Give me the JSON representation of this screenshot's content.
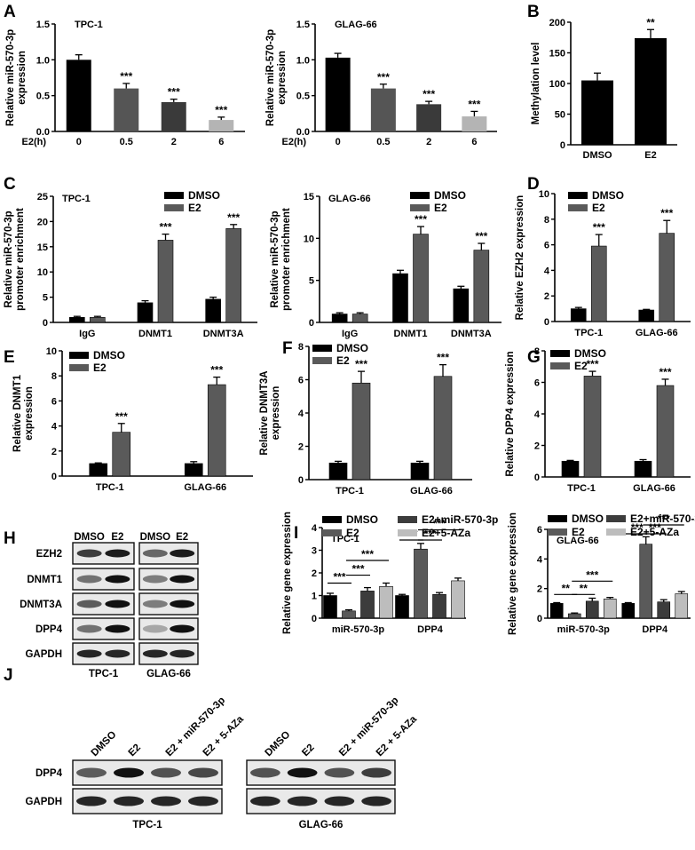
{
  "colors": {
    "dmso": "#000000",
    "e2": "#5a5a5a",
    "e2_mir": "#3c3c3c",
    "e2_aza": "#bdbdbd",
    "grey1": "#555555",
    "grey2": "#3a3a3a",
    "grey3": "#b4b4b4"
  },
  "chart_data": [
    {
      "id": "A1",
      "panel": "A",
      "type": "bar",
      "title": "TPC-1",
      "xlabel_prefix": "E2(h)",
      "ylabel": "Relative miR-570-3p expression",
      "ylim": [
        0,
        1.5
      ],
      "yticks": [
        "0.0",
        "0.5",
        "1.0",
        "1.5"
      ],
      "ytick_values": [
        0,
        0.5,
        1.0,
        1.5
      ],
      "categories": [
        "0",
        "0.5",
        "2",
        "6"
      ],
      "values": [
        1.0,
        0.6,
        0.41,
        0.16
      ],
      "errors": [
        0.07,
        0.07,
        0.04,
        0.04
      ],
      "sig": [
        "",
        "***",
        "***",
        "***"
      ]
    },
    {
      "id": "A2",
      "panel": "",
      "type": "bar",
      "title": "GLAG-66",
      "xlabel_prefix": "E2(h)",
      "ylabel": "Relative miR-570-3p expression",
      "ylim": [
        0,
        1.5
      ],
      "yticks": [
        "0.0",
        "0.5",
        "1.0",
        "1.5"
      ],
      "ytick_values": [
        0,
        0.5,
        1.0,
        1.5
      ],
      "categories": [
        "0",
        "0.5",
        "2",
        "6"
      ],
      "values": [
        1.03,
        0.6,
        0.38,
        0.21
      ],
      "errors": [
        0.06,
        0.06,
        0.04,
        0.07
      ],
      "sig": [
        "",
        "***",
        "***",
        "***"
      ]
    },
    {
      "id": "B",
      "panel": "B",
      "type": "bar",
      "title": "",
      "ylabel": "Methylation level",
      "ylim": [
        0,
        200
      ],
      "yticks": [
        "0",
        "50",
        "100",
        "150",
        "200"
      ],
      "ytick_values": [
        0,
        50,
        100,
        150,
        200
      ],
      "categories": [
        "DMSO",
        "E2"
      ],
      "values": [
        105,
        174
      ],
      "errors": [
        12,
        14
      ],
      "sig": [
        "",
        "**"
      ]
    },
    {
      "id": "C1",
      "panel": "C",
      "type": "grouped-bar",
      "title": "TPC-1",
      "ylabel": "Relative miR-570-3p promoter enrichment",
      "ylim": [
        0,
        25
      ],
      "yticks": [
        "0",
        "5",
        "10",
        "15",
        "20",
        "25"
      ],
      "ytick_values": [
        0,
        5,
        10,
        15,
        20,
        25
      ],
      "categories": [
        "IgG",
        "DNMT1",
        "DNMT3A"
      ],
      "series": [
        {
          "name": "DMSO",
          "values": [
            1.0,
            3.9,
            4.6
          ],
          "errors": [
            0.2,
            0.4,
            0.4
          ]
        },
        {
          "name": "E2",
          "values": [
            1.0,
            16.3,
            18.6
          ],
          "errors": [
            0.2,
            1.2,
            0.8
          ]
        }
      ],
      "sig": [
        [
          "",
          ""
        ],
        [
          "",
          "***"
        ],
        [
          "",
          "***"
        ]
      ]
    },
    {
      "id": "C2",
      "panel": "",
      "type": "grouped-bar",
      "title": "GLAG-66",
      "ylabel": "Relative miR-570-3p promoter enrichment",
      "ylim": [
        0,
        15
      ],
      "yticks": [
        "0",
        "5",
        "10",
        "15"
      ],
      "ytick_values": [
        0,
        5,
        10,
        15
      ],
      "categories": [
        "IgG",
        "DNMT1",
        "DNMT3A"
      ],
      "series": [
        {
          "name": "DMSO",
          "values": [
            1.0,
            5.8,
            4.0
          ],
          "errors": [
            0.15,
            0.4,
            0.3
          ]
        },
        {
          "name": "E2",
          "values": [
            1.0,
            10.5,
            8.6
          ],
          "errors": [
            0.15,
            0.9,
            0.8
          ]
        }
      ],
      "sig": [
        [
          "",
          ""
        ],
        [
          "",
          "***"
        ],
        [
          "",
          "***"
        ]
      ]
    },
    {
      "id": "D",
      "panel": "D",
      "type": "grouped-bar",
      "title": "",
      "ylabel": "Relative EZH2 expression",
      "ylim": [
        0,
        10
      ],
      "yticks": [
        "0",
        "2",
        "4",
        "6",
        "8",
        "10"
      ],
      "ytick_values": [
        0,
        2,
        4,
        6,
        8,
        10
      ],
      "categories": [
        "TPC-1",
        "GLAG-66"
      ],
      "series": [
        {
          "name": "DMSO",
          "values": [
            1.0,
            0.9
          ],
          "errors": [
            0.1,
            0.05
          ]
        },
        {
          "name": "E2",
          "values": [
            5.9,
            6.9
          ],
          "errors": [
            0.9,
            1.0
          ]
        }
      ],
      "sig": [
        [
          "",
          "***"
        ],
        [
          "",
          "***"
        ]
      ]
    },
    {
      "id": "E",
      "panel": "E",
      "type": "grouped-bar",
      "title": "",
      "ylabel": "Relative DNMT1 expression",
      "ylim": [
        0,
        10
      ],
      "yticks": [
        "0",
        "2",
        "4",
        "6",
        "8",
        "10"
      ],
      "ytick_values": [
        0,
        2,
        4,
        6,
        8,
        10
      ],
      "categories": [
        "TPC-1",
        "GLAG-66"
      ],
      "series": [
        {
          "name": "DMSO",
          "values": [
            1.0,
            1.0
          ],
          "errors": [
            0.05,
            0.15
          ]
        },
        {
          "name": "E2",
          "values": [
            3.5,
            7.3
          ],
          "errors": [
            0.7,
            0.6
          ]
        }
      ],
      "sig": [
        [
          "",
          "***"
        ],
        [
          "",
          "***"
        ]
      ]
    },
    {
      "id": "F",
      "panel": "F",
      "type": "grouped-bar",
      "title": "",
      "ylabel": "Relative DNMT3A expression",
      "ylim": [
        0,
        8
      ],
      "yticks": [
        "0",
        "2",
        "4",
        "6",
        "8"
      ],
      "ytick_values": [
        0,
        2,
        4,
        6,
        8
      ],
      "categories": [
        "TPC-1",
        "GLAG-66"
      ],
      "series": [
        {
          "name": "DMSO",
          "values": [
            1.0,
            1.0
          ],
          "errors": [
            0.1,
            0.1
          ]
        },
        {
          "name": "E2",
          "values": [
            5.8,
            6.2
          ],
          "errors": [
            0.7,
            0.7
          ]
        }
      ],
      "sig": [
        [
          "",
          "***"
        ],
        [
          "",
          "***"
        ]
      ]
    },
    {
      "id": "G",
      "panel": "G",
      "type": "grouped-bar",
      "title": "",
      "ylabel": "Relative DPP4 expression",
      "ylim": [
        0,
        8
      ],
      "yticks": [
        "0",
        "2",
        "4",
        "6",
        "8"
      ],
      "ytick_values": [
        0,
        2,
        4,
        6,
        8
      ],
      "categories": [
        "TPC-1",
        "GLAG-66"
      ],
      "series": [
        {
          "name": "DMSO",
          "values": [
            1.0,
            1.0
          ],
          "errors": [
            0.05,
            0.1
          ]
        },
        {
          "name": "E2",
          "values": [
            6.4,
            5.8
          ],
          "errors": [
            0.3,
            0.4
          ]
        }
      ],
      "sig": [
        [
          "",
          "***"
        ],
        [
          "",
          "***"
        ]
      ]
    },
    {
      "id": "I1",
      "panel": "I",
      "type": "grouped-bar",
      "title": "TPC-1",
      "ylabel": "Relative gene expression",
      "ylim": [
        0,
        4
      ],
      "yticks": [
        "0",
        "1",
        "2",
        "3",
        "4"
      ],
      "ytick_values": [
        0,
        1,
        2,
        3,
        4
      ],
      "categories": [
        "miR-570-3p",
        "DPP4"
      ],
      "series": [
        {
          "name": "DMSO",
          "values": [
            1.0,
            1.0
          ],
          "errors": [
            0.1,
            0.05
          ]
        },
        {
          "name": "E2",
          "values": [
            0.32,
            3.05
          ],
          "errors": [
            0.05,
            0.25
          ]
        },
        {
          "name": "E2+miR-570-3p",
          "values": [
            1.2,
            1.05
          ],
          "errors": [
            0.15,
            0.08
          ]
        },
        {
          "name": "E2+5-AZa",
          "values": [
            1.4,
            1.65
          ],
          "errors": [
            0.15,
            0.12
          ]
        }
      ],
      "brackets": [
        {
          "group": 0,
          "from": 0,
          "to": 1,
          "level": 1.55,
          "label": "***"
        },
        {
          "group": 0,
          "from": 1,
          "to": 2,
          "level": 1.9,
          "label": "***"
        },
        {
          "group": 0,
          "from": 1,
          "to": 3,
          "level": 2.55,
          "label": "***"
        },
        {
          "group": 1,
          "from": 0,
          "to": 1,
          "level": 3.45,
          "label": "***"
        },
        {
          "group": 1,
          "from": 1,
          "to": 2,
          "level": 3.45,
          "label": "***"
        },
        {
          "group": 1,
          "from": 1,
          "to": 3,
          "level": 3.9,
          "label": "***"
        }
      ]
    },
    {
      "id": "I2",
      "panel": "",
      "type": "grouped-bar",
      "title": "GLAG-66",
      "ylabel": "Relative gene expression",
      "ylim": [
        0,
        6
      ],
      "yticks": [
        "0",
        "2",
        "4",
        "6"
      ],
      "ytick_values": [
        0,
        2,
        4,
        6
      ],
      "categories": [
        "miR-570-3p",
        "DPP4"
      ],
      "series": [
        {
          "name": "DMSO",
          "values": [
            1.0,
            1.0
          ],
          "errors": [
            0.05,
            0.05
          ]
        },
        {
          "name": "E2",
          "values": [
            0.3,
            5.0
          ],
          "errors": [
            0.05,
            0.5
          ]
        },
        {
          "name": "E2+miR-570-3p",
          "values": [
            1.15,
            1.1
          ],
          "errors": [
            0.2,
            0.15
          ]
        },
        {
          "name": "E2+5-AZa",
          "values": [
            1.3,
            1.65
          ],
          "errors": [
            0.1,
            0.15
          ]
        }
      ],
      "brackets": [
        {
          "group": 0,
          "from": 0,
          "to": 1,
          "level": 1.6,
          "label": "**"
        },
        {
          "group": 0,
          "from": 1,
          "to": 2,
          "level": 1.6,
          "label": "**"
        },
        {
          "group": 0,
          "from": 1,
          "to": 3,
          "level": 2.5,
          "label": "***"
        },
        {
          "group": 1,
          "from": 0,
          "to": 1,
          "level": 5.7,
          "label": "***"
        },
        {
          "group": 1,
          "from": 1,
          "to": 2,
          "level": 5.7,
          "label": "***"
        },
        {
          "group": 1,
          "from": 1,
          "to": 3,
          "level": 6.3,
          "label": "***"
        }
      ]
    }
  ],
  "western_H": {
    "panel": "H",
    "columns": [
      "DMSO",
      "E2"
    ],
    "rows": [
      "EZH2",
      "DNMT1",
      "DNMT3A",
      "DPP4",
      "GAPDH"
    ],
    "intensity": {
      "TPC-1": [
        [
          0.8,
          0.95
        ],
        [
          0.55,
          1.0
        ],
        [
          0.65,
          1.0
        ],
        [
          0.55,
          1.0
        ],
        [
          0.9,
          0.9
        ]
      ],
      "GLAG-66": [
        [
          0.6,
          0.95
        ],
        [
          0.5,
          1.0
        ],
        [
          0.5,
          1.0
        ],
        [
          0.3,
          1.0
        ],
        [
          0.9,
          0.9
        ]
      ]
    },
    "blocks": [
      "TPC-1",
      "GLAG-66"
    ]
  },
  "western_J": {
    "panel": "J",
    "columns": [
      "DMSO",
      "E2",
      "E2 + miR-570-3p",
      "E2 + 5-AZa"
    ],
    "rows": [
      "DPP4",
      "GAPDH"
    ],
    "intensity": {
      "TPC-1": [
        [
          0.65,
          1.0,
          0.7,
          0.75
        ],
        [
          0.9,
          0.9,
          0.9,
          0.9
        ]
      ],
      "GLAG-66": [
        [
          0.7,
          1.0,
          0.7,
          0.8
        ],
        [
          0.9,
          0.9,
          0.9,
          0.9
        ]
      ]
    },
    "blocks": [
      "TPC-1",
      "GLAG-66"
    ]
  }
}
